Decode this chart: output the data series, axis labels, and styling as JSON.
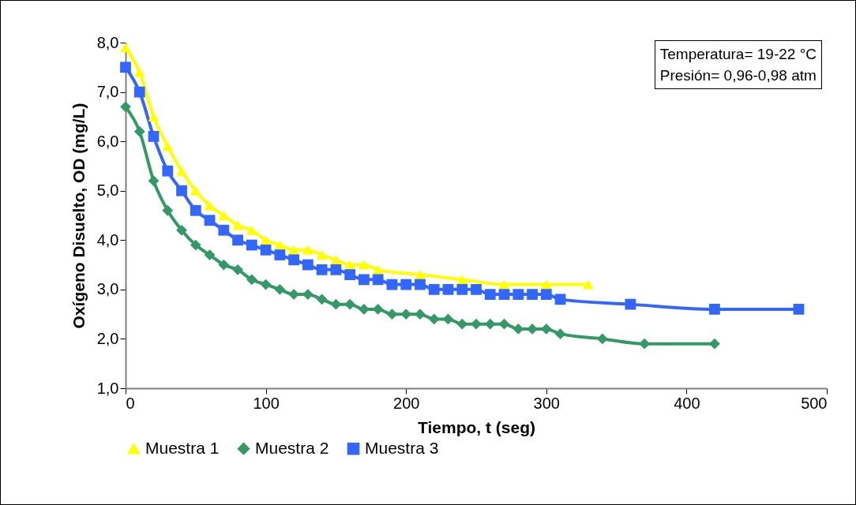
{
  "chart_data": {
    "type": "line",
    "xlabel": "Tiempo, t (seg)",
    "ylabel": "Oxígeno Disuelto, OD (mg/L)",
    "annotations": [
      "Temperatura= 19-22 °C",
      "Presión= 0,96-0,98 atm"
    ],
    "xlim": [
      0,
      500
    ],
    "xticks": [
      0,
      100,
      200,
      300,
      400,
      500
    ],
    "ylim": [
      1,
      8
    ],
    "yticks": [
      {
        "value": 1,
        "label": "1,0"
      },
      {
        "value": 2,
        "label": "2,0"
      },
      {
        "value": 3,
        "label": "3,0"
      },
      {
        "value": 4,
        "label": "4,0"
      },
      {
        "value": 5,
        "label": "5,0"
      },
      {
        "value": 6,
        "label": "6,0"
      },
      {
        "value": 7,
        "label": "7,0"
      },
      {
        "value": 8,
        "label": "8,0"
      }
    ],
    "grid": false,
    "legend": "bottom",
    "series": [
      {
        "name": "Muestra 1",
        "color": "#ffff00",
        "marker": "triangle",
        "x": [
          0,
          10,
          20,
          30,
          40,
          50,
          60,
          70,
          80,
          90,
          100,
          110,
          120,
          130,
          140,
          150,
          160,
          170,
          180,
          210,
          240,
          270,
          300,
          330
        ],
        "values": [
          7.9,
          7.4,
          6.5,
          5.9,
          5.4,
          5.0,
          4.7,
          4.5,
          4.3,
          4.2,
          4.0,
          3.9,
          3.8,
          3.8,
          3.7,
          3.6,
          3.5,
          3.5,
          3.4,
          3.3,
          3.2,
          3.1,
          3.1,
          3.1
        ]
      },
      {
        "name": "Muestra 2",
        "color": "#339966",
        "marker": "diamond",
        "x": [
          0,
          10,
          20,
          30,
          40,
          50,
          60,
          70,
          80,
          90,
          100,
          110,
          120,
          130,
          140,
          150,
          160,
          170,
          180,
          190,
          200,
          210,
          220,
          230,
          240,
          250,
          260,
          270,
          280,
          290,
          300,
          310,
          340,
          370,
          420
        ],
        "values": [
          6.7,
          6.2,
          5.2,
          4.6,
          4.2,
          3.9,
          3.7,
          3.5,
          3.4,
          3.2,
          3.1,
          3.0,
          2.9,
          2.9,
          2.8,
          2.7,
          2.7,
          2.6,
          2.6,
          2.5,
          2.5,
          2.5,
          2.4,
          2.4,
          2.3,
          2.3,
          2.3,
          2.3,
          2.2,
          2.2,
          2.2,
          2.1,
          2.0,
          1.9,
          1.9
        ]
      },
      {
        "name": "Muestra 3",
        "color": "#3366ff",
        "marker": "square",
        "x": [
          0,
          10,
          20,
          30,
          40,
          50,
          60,
          70,
          80,
          90,
          100,
          110,
          120,
          130,
          140,
          150,
          160,
          170,
          180,
          190,
          200,
          210,
          220,
          230,
          240,
          250,
          260,
          270,
          280,
          290,
          300,
          310,
          360,
          420,
          480
        ],
        "values": [
          7.5,
          7.0,
          6.1,
          5.4,
          5.0,
          4.6,
          4.4,
          4.2,
          4.0,
          3.9,
          3.8,
          3.7,
          3.6,
          3.5,
          3.4,
          3.4,
          3.3,
          3.2,
          3.2,
          3.1,
          3.1,
          3.1,
          3.0,
          3.0,
          3.0,
          3.0,
          2.9,
          2.9,
          2.9,
          2.9,
          2.9,
          2.8,
          2.7,
          2.6,
          2.6
        ]
      }
    ]
  }
}
